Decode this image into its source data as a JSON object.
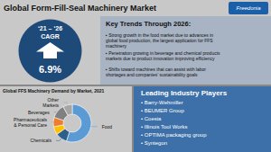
{
  "chart_data": {
    "type": "pie",
    "title": "Global Form-Fill-Seal Machinery Market",
    "subtitle": "Global FFS Machinery Demand by Market, 2021",
    "categories": [
      "Food",
      "Chemicals",
      null,
      "Pharmaceuticals\n& Personal Care",
      "Beverages",
      "Other\nMarkets"
    ],
    "values": [
      55,
      10,
      7,
      8,
      12,
      8
    ],
    "colors": [
      "#5b9bd5",
      "#2e5f8a",
      "#ffc000",
      "#ed7d31",
      "#808080",
      "#a6a6a6"
    ],
    "annotations": [
      "Freedonia",
      "‘21 – ‘26",
      "CAGR",
      "6.9%",
      "Key Trends Through 2026:",
      "▪ Strong growth in the food market due to advances in\nglobal food production, the largest application for FFS\nmachinery",
      "▪ Penetration growing in beverage and chemical products\nmarkets due to product innovation improving efficiency",
      "▪ Shifts toward machines that can assist with labor\nshortages and companies’ sustainability goals",
      "Leading Industry Players",
      "• Barry-Wehmiller",
      "• BEUMER Group",
      "• Coesia",
      "• Illinois Tool Works",
      "• OPTIMA packaging group",
      "• Syntegon"
    ]
  }
}
